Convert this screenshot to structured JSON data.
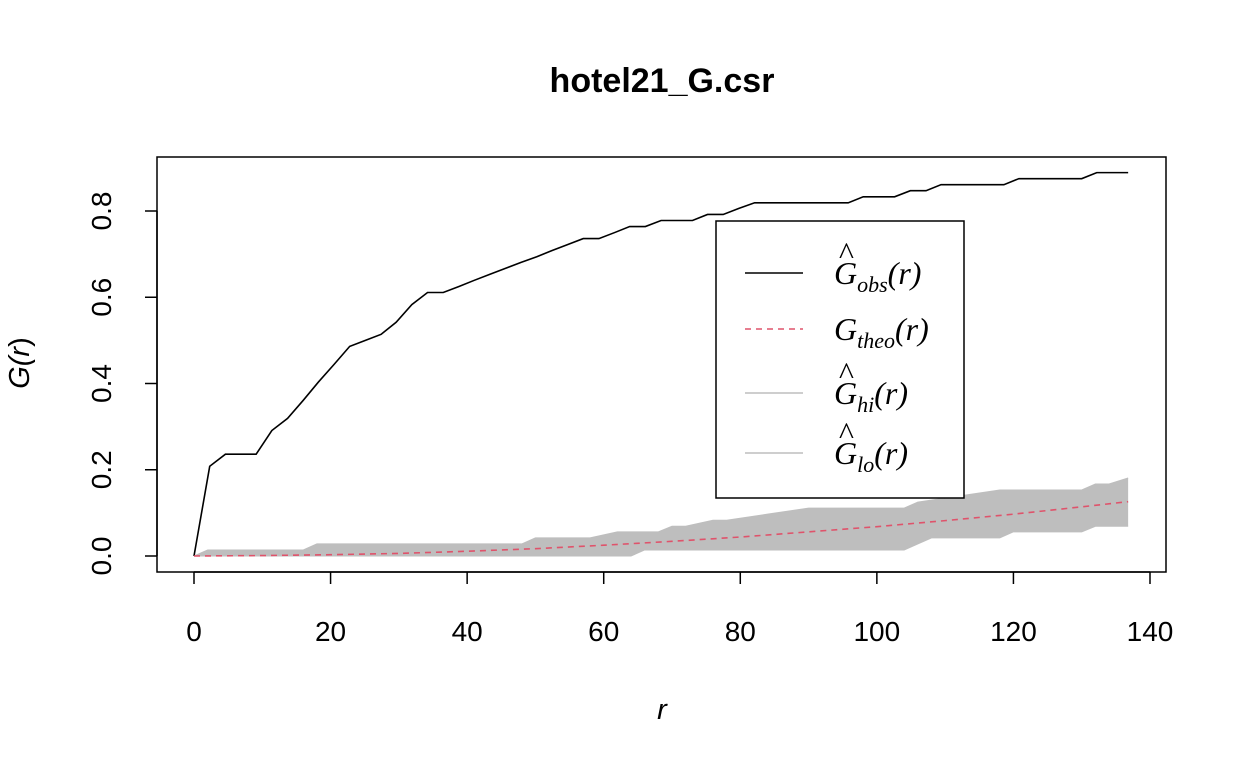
{
  "chart_data": {
    "type": "line",
    "title": "hotel21_G.csr",
    "xlabel": "r",
    "ylabel": "G(r)",
    "xlim": [
      0,
      140
    ],
    "ylim": [
      0,
      0.9
    ],
    "x_ticks": [
      0,
      20,
      40,
      60,
      80,
      100,
      120,
      140
    ],
    "y_ticks": [
      0.0,
      0.2,
      0.4,
      0.6,
      0.8
    ],
    "x_tick_labels": [
      "0",
      "20",
      "40",
      "60",
      "80",
      "100",
      "120",
      "140"
    ],
    "y_tick_labels": [
      "0.0",
      "0.2",
      "0.4",
      "0.6",
      "0.8"
    ],
    "legend_position": "upper-right",
    "series": [
      {
        "name": "Ĝobs(r)",
        "legend_main": "G",
        "legend_sub": "obs",
        "legend_hat": true,
        "color": "#000000",
        "style": "solid",
        "x": [
          0,
          2.3,
          4.6,
          6.8,
          9.1,
          11.4,
          13.7,
          16,
          18.2,
          20.5,
          22.8,
          25.1,
          27.4,
          29.6,
          31.9,
          34.2,
          36.5,
          38.8,
          41,
          43.3,
          45.6,
          47.9,
          50.2,
          52.4,
          54.7,
          57,
          59.3,
          61.6,
          63.8,
          66.1,
          68.4,
          70.7,
          73,
          75.2,
          77.5,
          79.8,
          82.1,
          84.4,
          86.6,
          88.9,
          91.2,
          93.5,
          95.8,
          98,
          100.3,
          102.6,
          104.9,
          107.2,
          109.4,
          111.7,
          114,
          116.3,
          118.6,
          120.8,
          123.1,
          125.4,
          127.7,
          130,
          132.2,
          134.5,
          136.8
        ],
        "y": [
          0,
          0.208,
          0.236,
          0.236,
          0.236,
          0.291,
          0.319,
          0.361,
          0.403,
          0.444,
          0.486,
          0.5,
          0.514,
          0.542,
          0.583,
          0.611,
          0.611,
          0.625,
          0.639,
          0.653,
          0.667,
          0.681,
          0.694,
          0.708,
          0.722,
          0.736,
          0.736,
          0.75,
          0.764,
          0.764,
          0.778,
          0.778,
          0.778,
          0.792,
          0.792,
          0.806,
          0.819,
          0.819,
          0.819,
          0.819,
          0.819,
          0.819,
          0.819,
          0.833,
          0.833,
          0.833,
          0.847,
          0.847,
          0.861,
          0.861,
          0.861,
          0.861,
          0.861,
          0.875,
          0.875,
          0.875,
          0.875,
          0.875,
          0.889,
          0.889,
          0.889
        ]
      },
      {
        "name": "Gtheo(r)",
        "legend_main": "G",
        "legend_sub": "theo",
        "legend_hat": false,
        "color": "#DF536B",
        "style": "dashed",
        "x": [
          0,
          10,
          20,
          30,
          40,
          50,
          60,
          70,
          80,
          90,
          100,
          110,
          120,
          130,
          136.8
        ],
        "y": [
          0,
          0.001,
          0.003,
          0.006,
          0.011,
          0.017,
          0.025,
          0.034,
          0.044,
          0.056,
          0.068,
          0.082,
          0.097,
          0.114,
          0.126
        ]
      },
      {
        "name": "Ĝhi(r)",
        "legend_main": "G",
        "legend_sub": "hi",
        "legend_hat": true,
        "color": "#BEBEBE",
        "style": "band-upper",
        "x": [
          0,
          2,
          16,
          18,
          48,
          50,
          56,
          58,
          62,
          68,
          70,
          72,
          76,
          78,
          84,
          90,
          104,
          106,
          118,
          130,
          132,
          134,
          136.8
        ],
        "y": [
          0,
          0.014,
          0.014,
          0.028,
          0.028,
          0.042,
          0.042,
          0.042,
          0.056,
          0.056,
          0.069,
          0.069,
          0.083,
          0.083,
          0.097,
          0.111,
          0.111,
          0.125,
          0.153,
          0.153,
          0.167,
          0.167,
          0.181
        ]
      },
      {
        "name": "Ĝlo(r)",
        "legend_main": "G",
        "legend_sub": "lo",
        "legend_hat": true,
        "color": "#BEBEBE",
        "style": "band-lower",
        "x": [
          0,
          60,
          64,
          66,
          102,
          104,
          106,
          108,
          118,
          120,
          122,
          130,
          132,
          134,
          136.8
        ],
        "y": [
          0,
          0,
          0,
          0.014,
          0.014,
          0.014,
          0.028,
          0.042,
          0.042,
          0.056,
          0.056,
          0.056,
          0.069,
          0.069,
          0.069
        ]
      }
    ]
  }
}
